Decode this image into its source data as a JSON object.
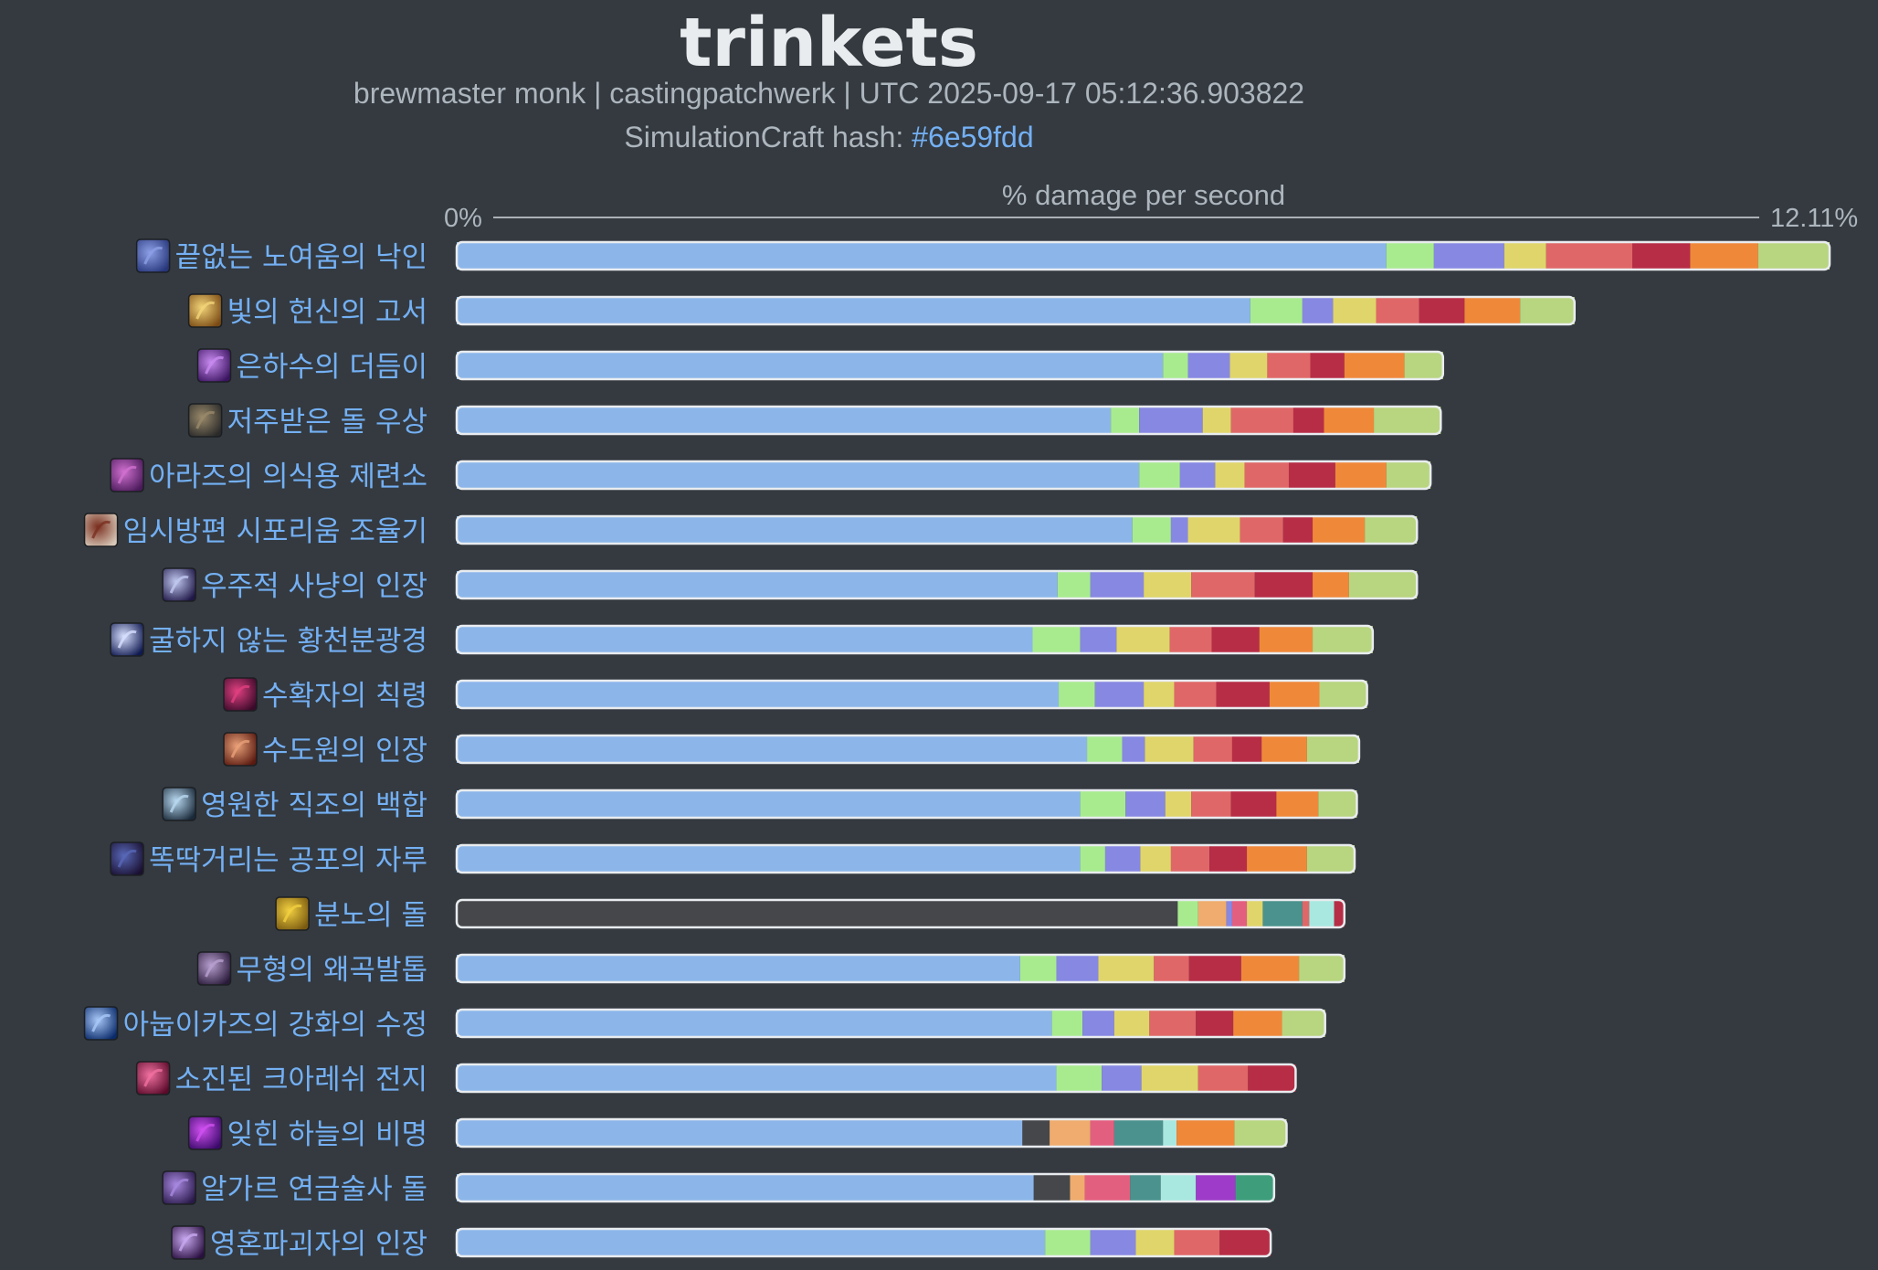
{
  "header": {
    "title": "trinkets",
    "subtitle": "brewmaster monk | castingpatchwerk | UTC 2025-09-17 05:12:36.903822",
    "hash_label": "SimulationCraft hash:",
    "hash_value": "#6e59fdd"
  },
  "chart_data": {
    "type": "bar",
    "orientation": "horizontal",
    "stacked": true,
    "xlabel": "% damage per second",
    "xlim": [
      0,
      12.11
    ],
    "axis_min_label": "0%",
    "axis_max_label": "12.11%",
    "colors": {
      "blue": "#8cb6ea",
      "green": "#a8eb8f",
      "purple": "#8788e2",
      "yellow": "#e0d56a",
      "red": "#e06767",
      "crimson": "#b72d46",
      "orange": "#f0883a",
      "olive": "#b8d57f",
      "dark": "#45474a",
      "peach": "#efac6e",
      "pink": "#e35f80",
      "teal": "#4b928e",
      "cyan": "#a8e8e0",
      "violet": "#9e3cc9",
      "seagreen": "#3e9e7c"
    },
    "categories": [
      {
        "label": "끝없는 노여움의 낙인",
        "icon": "rune-brand-icon",
        "icon_colors": [
          "#27367a",
          "#8c9fe6"
        ],
        "segments": [
          [
            "blue",
            8.2
          ],
          [
            "green",
            0.42
          ],
          [
            "purple",
            0.62
          ],
          [
            "yellow",
            0.37
          ],
          [
            "red",
            0.76
          ],
          [
            "crimson",
            0.51
          ],
          [
            "orange",
            0.6
          ],
          [
            "olive",
            0.63
          ]
        ]
      },
      {
        "label": "빛의 헌신의 고서",
        "icon": "tome-icon",
        "icon_colors": [
          "#7a4a14",
          "#f2d478"
        ],
        "segments": [
          [
            "blue",
            7.0
          ],
          [
            "green",
            0.46
          ],
          [
            "purple",
            0.27
          ],
          [
            "yellow",
            0.38
          ],
          [
            "red",
            0.38
          ],
          [
            "crimson",
            0.4
          ],
          [
            "orange",
            0.49
          ],
          [
            "olive",
            0.48
          ]
        ]
      },
      {
        "label": "은하수의 더듬이",
        "icon": "feather-icon",
        "icon_colors": [
          "#3a1460",
          "#c88af0"
        ],
        "segments": [
          [
            "blue",
            6.23
          ],
          [
            "green",
            0.22
          ],
          [
            "purple",
            0.37
          ],
          [
            "yellow",
            0.33
          ],
          [
            "red",
            0.38
          ],
          [
            "crimson",
            0.3
          ],
          [
            "orange",
            0.53
          ],
          [
            "olive",
            0.34
          ]
        ]
      },
      {
        "label": "저주받은 돌 우상",
        "icon": "stone-idol-icon",
        "icon_colors": [
          "#2a2a2a",
          "#9a8a6a"
        ],
        "segments": [
          [
            "blue",
            5.77
          ],
          [
            "green",
            0.25
          ],
          [
            "purple",
            0.56
          ],
          [
            "yellow",
            0.25
          ],
          [
            "red",
            0.55
          ],
          [
            "crimson",
            0.27
          ],
          [
            "orange",
            0.44
          ],
          [
            "olive",
            0.59
          ]
        ]
      },
      {
        "label": "아라즈의 의식용 제련소",
        "icon": "forge-icon",
        "icon_colors": [
          "#4a1a5a",
          "#d070d0"
        ],
        "segments": [
          [
            "blue",
            6.02
          ],
          [
            "green",
            0.36
          ],
          [
            "purple",
            0.31
          ],
          [
            "yellow",
            0.26
          ],
          [
            "red",
            0.39
          ],
          [
            "crimson",
            0.41
          ],
          [
            "orange",
            0.45
          ],
          [
            "olive",
            0.39
          ]
        ]
      },
      {
        "label": "임시방편 시포리움 조율기",
        "icon": "tuner-icon",
        "icon_colors": [
          "#d8c8b8",
          "#7a3020"
        ],
        "segments": [
          [
            "blue",
            5.96
          ],
          [
            "green",
            0.34
          ],
          [
            "purple",
            0.15
          ],
          [
            "yellow",
            0.46
          ],
          [
            "red",
            0.38
          ],
          [
            "crimson",
            0.26
          ],
          [
            "orange",
            0.46
          ],
          [
            "olive",
            0.46
          ]
        ]
      },
      {
        "label": "우주적 사냥의 인장",
        "icon": "cosmic-sigil-icon",
        "icon_colors": [
          "#201848",
          "#c0c8f0"
        ],
        "segments": [
          [
            "blue",
            5.3
          ],
          [
            "green",
            0.29
          ],
          [
            "purple",
            0.47
          ],
          [
            "yellow",
            0.42
          ],
          [
            "red",
            0.56
          ],
          [
            "crimson",
            0.51
          ],
          [
            "orange",
            0.32
          ],
          [
            "olive",
            0.6
          ]
        ]
      },
      {
        "label": "굴하지 않는 황천분광경",
        "icon": "spectroscope-icon",
        "icon_colors": [
          "#101a50",
          "#d8e0ff"
        ],
        "segments": [
          [
            "blue",
            5.08
          ],
          [
            "green",
            0.42
          ],
          [
            "purple",
            0.32
          ],
          [
            "yellow",
            0.47
          ],
          [
            "red",
            0.37
          ],
          [
            "crimson",
            0.42
          ],
          [
            "orange",
            0.47
          ],
          [
            "olive",
            0.53
          ]
        ]
      },
      {
        "label": "수확자의 칙령",
        "icon": "scythe-icon",
        "icon_colors": [
          "#3a0a2a",
          "#e04080"
        ],
        "segments": [
          [
            "blue",
            5.31
          ],
          [
            "green",
            0.32
          ],
          [
            "purple",
            0.43
          ],
          [
            "yellow",
            0.27
          ],
          [
            "red",
            0.37
          ],
          [
            "crimson",
            0.47
          ],
          [
            "orange",
            0.44
          ],
          [
            "olive",
            0.42
          ]
        ]
      },
      {
        "label": "수도원의 인장",
        "icon": "monastery-seal-icon",
        "icon_colors": [
          "#5a1a10",
          "#e8a078"
        ],
        "segments": [
          [
            "blue",
            5.56
          ],
          [
            "green",
            0.31
          ],
          [
            "purple",
            0.2
          ],
          [
            "yellow",
            0.43
          ],
          [
            "red",
            0.34
          ],
          [
            "crimson",
            0.26
          ],
          [
            "orange",
            0.4
          ],
          [
            "olive",
            0.46
          ]
        ]
      },
      {
        "label": "영원한 직조의 백합",
        "icon": "lily-icon",
        "icon_colors": [
          "#1a2a3a",
          "#b8d8f0"
        ],
        "segments": [
          [
            "blue",
            5.5
          ],
          [
            "green",
            0.4
          ],
          [
            "purple",
            0.35
          ],
          [
            "yellow",
            0.23
          ],
          [
            "red",
            0.35
          ],
          [
            "crimson",
            0.4
          ],
          [
            "orange",
            0.37
          ],
          [
            "olive",
            0.34
          ]
        ]
      },
      {
        "label": "똑딱거리는 공포의 자루",
        "icon": "sack-icon",
        "icon_colors": [
          "#1a1030",
          "#5868b8"
        ],
        "segments": [
          [
            "blue",
            5.5
          ],
          [
            "green",
            0.22
          ],
          [
            "purple",
            0.31
          ],
          [
            "yellow",
            0.27
          ],
          [
            "red",
            0.34
          ],
          [
            "crimson",
            0.33
          ],
          [
            "orange",
            0.53
          ],
          [
            "olive",
            0.42
          ]
        ]
      },
      {
        "label": "분노의 돌",
        "icon": "stone-of-rage-icon",
        "icon_colors": [
          "#7a5a10",
          "#f2d040"
        ],
        "segments": [
          [
            "dark",
            6.36
          ],
          [
            "green",
            0.18
          ],
          [
            "peach",
            0.25
          ],
          [
            "purple",
            0.05
          ],
          [
            "pink",
            0.13
          ],
          [
            "yellow",
            0.14
          ],
          [
            "teal",
            0.35
          ],
          [
            "red",
            0.06
          ],
          [
            "cyan",
            0.22
          ],
          [
            "crimson",
            0.09
          ]
        ]
      },
      {
        "label": "무형의 왜곡발톱",
        "icon": "claw-icon",
        "icon_colors": [
          "#2a1a3a",
          "#b8a0d0"
        ],
        "segments": [
          [
            "blue",
            4.97
          ],
          [
            "green",
            0.32
          ],
          [
            "purple",
            0.37
          ],
          [
            "yellow",
            0.49
          ],
          [
            "red",
            0.31
          ],
          [
            "crimson",
            0.46
          ],
          [
            "orange",
            0.51
          ],
          [
            "olive",
            0.4
          ]
        ]
      },
      {
        "label": "아눕이카즈의 강화의 수정",
        "icon": "crystal-icon",
        "icon_colors": [
          "#0a2a6a",
          "#a8c8f8"
        ],
        "segments": [
          [
            "blue",
            5.25
          ],
          [
            "green",
            0.27
          ],
          [
            "purple",
            0.28
          ],
          [
            "yellow",
            0.31
          ],
          [
            "red",
            0.41
          ],
          [
            "crimson",
            0.33
          ],
          [
            "orange",
            0.43
          ],
          [
            "olive",
            0.38
          ]
        ]
      },
      {
        "label": "소진된 크아레쉬 전지",
        "icon": "battery-icon",
        "icon_colors": [
          "#5a0a2a",
          "#f070a0"
        ],
        "segments": [
          [
            "blue",
            5.29
          ],
          [
            "green",
            0.4
          ],
          [
            "purple",
            0.35
          ],
          [
            "yellow",
            0.5
          ],
          [
            "red",
            0.44
          ],
          [
            "crimson",
            0.42
          ]
        ]
      },
      {
        "label": "잊힌 하늘의 비명",
        "icon": "vortex-icon",
        "icon_colors": [
          "#3a0a6a",
          "#d050f0"
        ],
        "segments": [
          [
            "blue",
            4.99
          ],
          [
            "dark",
            0.24
          ],
          [
            "peach",
            0.36
          ],
          [
            "pink",
            0.21
          ],
          [
            "teal",
            0.43
          ],
          [
            "cyan",
            0.12
          ],
          [
            "orange",
            0.51
          ],
          [
            "olive",
            0.46
          ]
        ]
      },
      {
        "label": "알가르 연금술사 돌",
        "icon": "alchemist-stone-icon",
        "icon_colors": [
          "#2a1a4a",
          "#a888e0"
        ],
        "segments": [
          [
            "blue",
            5.09
          ],
          [
            "dark",
            0.32
          ],
          [
            "peach",
            0.13
          ],
          [
            "pink",
            0.4
          ],
          [
            "teal",
            0.27
          ],
          [
            "cyan",
            0.31
          ],
          [
            "violet",
            0.35
          ],
          [
            "seagreen",
            0.34
          ]
        ]
      },
      {
        "label": "영혼파괴자의 인장",
        "icon": "soulbreaker-sigil-icon",
        "icon_colors": [
          "#2a1040",
          "#c8a8f0"
        ],
        "segments": [
          [
            "blue",
            5.19
          ],
          [
            "green",
            0.4
          ],
          [
            "purple",
            0.4
          ],
          [
            "yellow",
            0.34
          ],
          [
            "red",
            0.4
          ],
          [
            "crimson",
            0.45
          ]
        ]
      }
    ]
  }
}
